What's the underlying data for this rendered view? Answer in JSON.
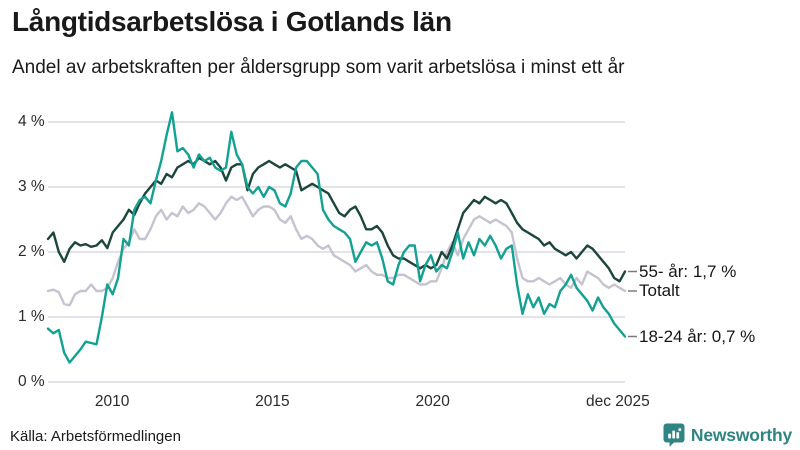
{
  "header": {
    "title": "Långtidsarbetslösa i Gotlands län",
    "subtitle": "Andel av arbetskraften per åldersgrupp som varit arbetslösa i minst ett år"
  },
  "footer": {
    "source": "Källa: Arbetsförmedlingen",
    "brand": "Newsworthy"
  },
  "colors": {
    "text": "#1a1a1a",
    "gridline": "#e4e3e9",
    "connector": "#7a7a7a",
    "brand_teal": "#2e8583",
    "series_55": "#1c463c",
    "series_totalt": "#c6c3d1",
    "series_1824": "#12a192"
  },
  "chart_data": {
    "type": "line",
    "title": "Långtidsarbetslösa i Gotlands län",
    "subtitle": "Andel av arbetskraften per åldersgrupp som varit arbetslösa i minst ett år",
    "x_unit": "year",
    "x_start_year": 2008.0,
    "x_end_year": 2026.0,
    "points_per_year": 6,
    "ylim": [
      0,
      4.35
    ],
    "grid": "horizontal",
    "legend_position": "right-of-line-ends",
    "yticks": [
      {
        "value": 0,
        "label": "0 %"
      },
      {
        "value": 1,
        "label": "1 %"
      },
      {
        "value": 2,
        "label": "2 %"
      },
      {
        "value": 3,
        "label": "3 %"
      },
      {
        "value": 4,
        "label": "4 %"
      }
    ],
    "xticks": [
      {
        "year": 2010,
        "label": "2010"
      },
      {
        "year": 2015,
        "label": "2015"
      },
      {
        "year": 2020,
        "label": "2020"
      },
      {
        "year": 2025.78,
        "label": "dec 2025"
      }
    ],
    "series": [
      {
        "id": "55-ar",
        "name": "55- år",
        "label": "55- år: 1,7 %",
        "end_value": 1.7,
        "color": "#1c463c",
        "values": [
          2.2,
          2.3,
          2.0,
          1.85,
          2.05,
          2.15,
          2.1,
          2.12,
          2.08,
          2.1,
          2.18,
          2.06,
          2.3,
          2.4,
          2.5,
          2.65,
          2.57,
          2.75,
          2.9,
          3.0,
          3.1,
          3.05,
          3.2,
          3.15,
          3.3,
          3.35,
          3.4,
          3.35,
          3.45,
          3.4,
          3.35,
          3.4,
          3.3,
          3.1,
          3.3,
          3.35,
          3.35,
          2.95,
          3.2,
          3.3,
          3.35,
          3.4,
          3.35,
          3.3,
          3.35,
          3.3,
          3.25,
          2.95,
          3.0,
          3.05,
          3.0,
          2.95,
          2.9,
          2.75,
          2.6,
          2.55,
          2.65,
          2.7,
          2.55,
          2.35,
          2.35,
          2.4,
          2.3,
          2.1,
          1.95,
          1.9,
          1.9,
          1.85,
          1.8,
          1.75,
          1.8,
          1.75,
          1.8,
          2.0,
          1.9,
          2.1,
          2.35,
          2.6,
          2.7,
          2.8,
          2.75,
          2.85,
          2.8,
          2.75,
          2.8,
          2.75,
          2.6,
          2.45,
          2.35,
          2.3,
          2.25,
          2.2,
          2.1,
          2.15,
          2.05,
          2.0,
          1.95,
          2.0,
          1.9,
          2.0,
          2.1,
          2.05,
          1.95,
          1.85,
          1.75,
          1.6,
          1.55,
          1.7
        ]
      },
      {
        "id": "totalt",
        "name": "Totalt",
        "label": "Totalt",
        "end_value": 1.4,
        "color": "#c6c3d1",
        "values": [
          1.4,
          1.42,
          1.38,
          1.2,
          1.18,
          1.35,
          1.4,
          1.4,
          1.5,
          1.4,
          1.4,
          1.45,
          1.6,
          1.85,
          2.05,
          2.15,
          2.35,
          2.2,
          2.2,
          2.35,
          2.55,
          2.65,
          2.5,
          2.6,
          2.55,
          2.7,
          2.6,
          2.65,
          2.75,
          2.7,
          2.6,
          2.5,
          2.6,
          2.75,
          2.85,
          2.8,
          2.85,
          2.7,
          2.55,
          2.65,
          2.7,
          2.7,
          2.65,
          2.5,
          2.45,
          2.55,
          2.35,
          2.2,
          2.25,
          2.2,
          2.1,
          2.05,
          2.1,
          1.95,
          1.9,
          1.85,
          1.8,
          1.7,
          1.75,
          1.8,
          1.7,
          1.65,
          1.65,
          1.6,
          1.6,
          1.65,
          1.65,
          1.6,
          1.55,
          1.5,
          1.5,
          1.55,
          1.55,
          1.75,
          2.0,
          2.15,
          1.95,
          2.2,
          2.35,
          2.5,
          2.55,
          2.5,
          2.45,
          2.5,
          2.45,
          2.4,
          2.3,
          1.9,
          1.6,
          1.55,
          1.55,
          1.6,
          1.55,
          1.5,
          1.55,
          1.6,
          1.5,
          1.45,
          1.6,
          1.5,
          1.7,
          1.65,
          1.6,
          1.5,
          1.45,
          1.5,
          1.45,
          1.4
        ]
      },
      {
        "id": "18-24-ar",
        "name": "18-24 år",
        "label": "18-24 år: 0,7 %",
        "end_value": 0.7,
        "color": "#12a192",
        "values": [
          0.82,
          0.75,
          0.8,
          0.45,
          0.3,
          0.4,
          0.5,
          0.62,
          0.6,
          0.58,
          1.0,
          1.5,
          1.35,
          1.6,
          2.2,
          2.1,
          2.65,
          2.8,
          2.85,
          2.75,
          3.1,
          3.4,
          3.8,
          4.15,
          3.55,
          3.6,
          3.5,
          3.3,
          3.5,
          3.4,
          3.45,
          3.3,
          3.25,
          3.3,
          3.85,
          3.5,
          3.35,
          3.0,
          2.9,
          3.0,
          2.85,
          3.0,
          2.95,
          2.75,
          2.7,
          2.9,
          3.3,
          3.4,
          3.4,
          3.3,
          3.2,
          2.65,
          2.5,
          2.4,
          2.35,
          2.3,
          2.2,
          1.85,
          2.0,
          2.15,
          2.1,
          2.15,
          1.9,
          1.55,
          1.5,
          1.8,
          2.0,
          2.1,
          2.1,
          1.55,
          1.8,
          1.95,
          1.7,
          1.8,
          1.75,
          2.0,
          2.3,
          1.9,
          2.15,
          1.95,
          2.2,
          2.1,
          2.25,
          2.1,
          1.9,
          2.05,
          2.1,
          1.5,
          1.05,
          1.35,
          1.15,
          1.3,
          1.05,
          1.2,
          1.15,
          1.4,
          1.5,
          1.65,
          1.45,
          1.35,
          1.25,
          1.1,
          1.3,
          1.15,
          1.05,
          0.9,
          0.8,
          0.7
        ]
      }
    ]
  }
}
